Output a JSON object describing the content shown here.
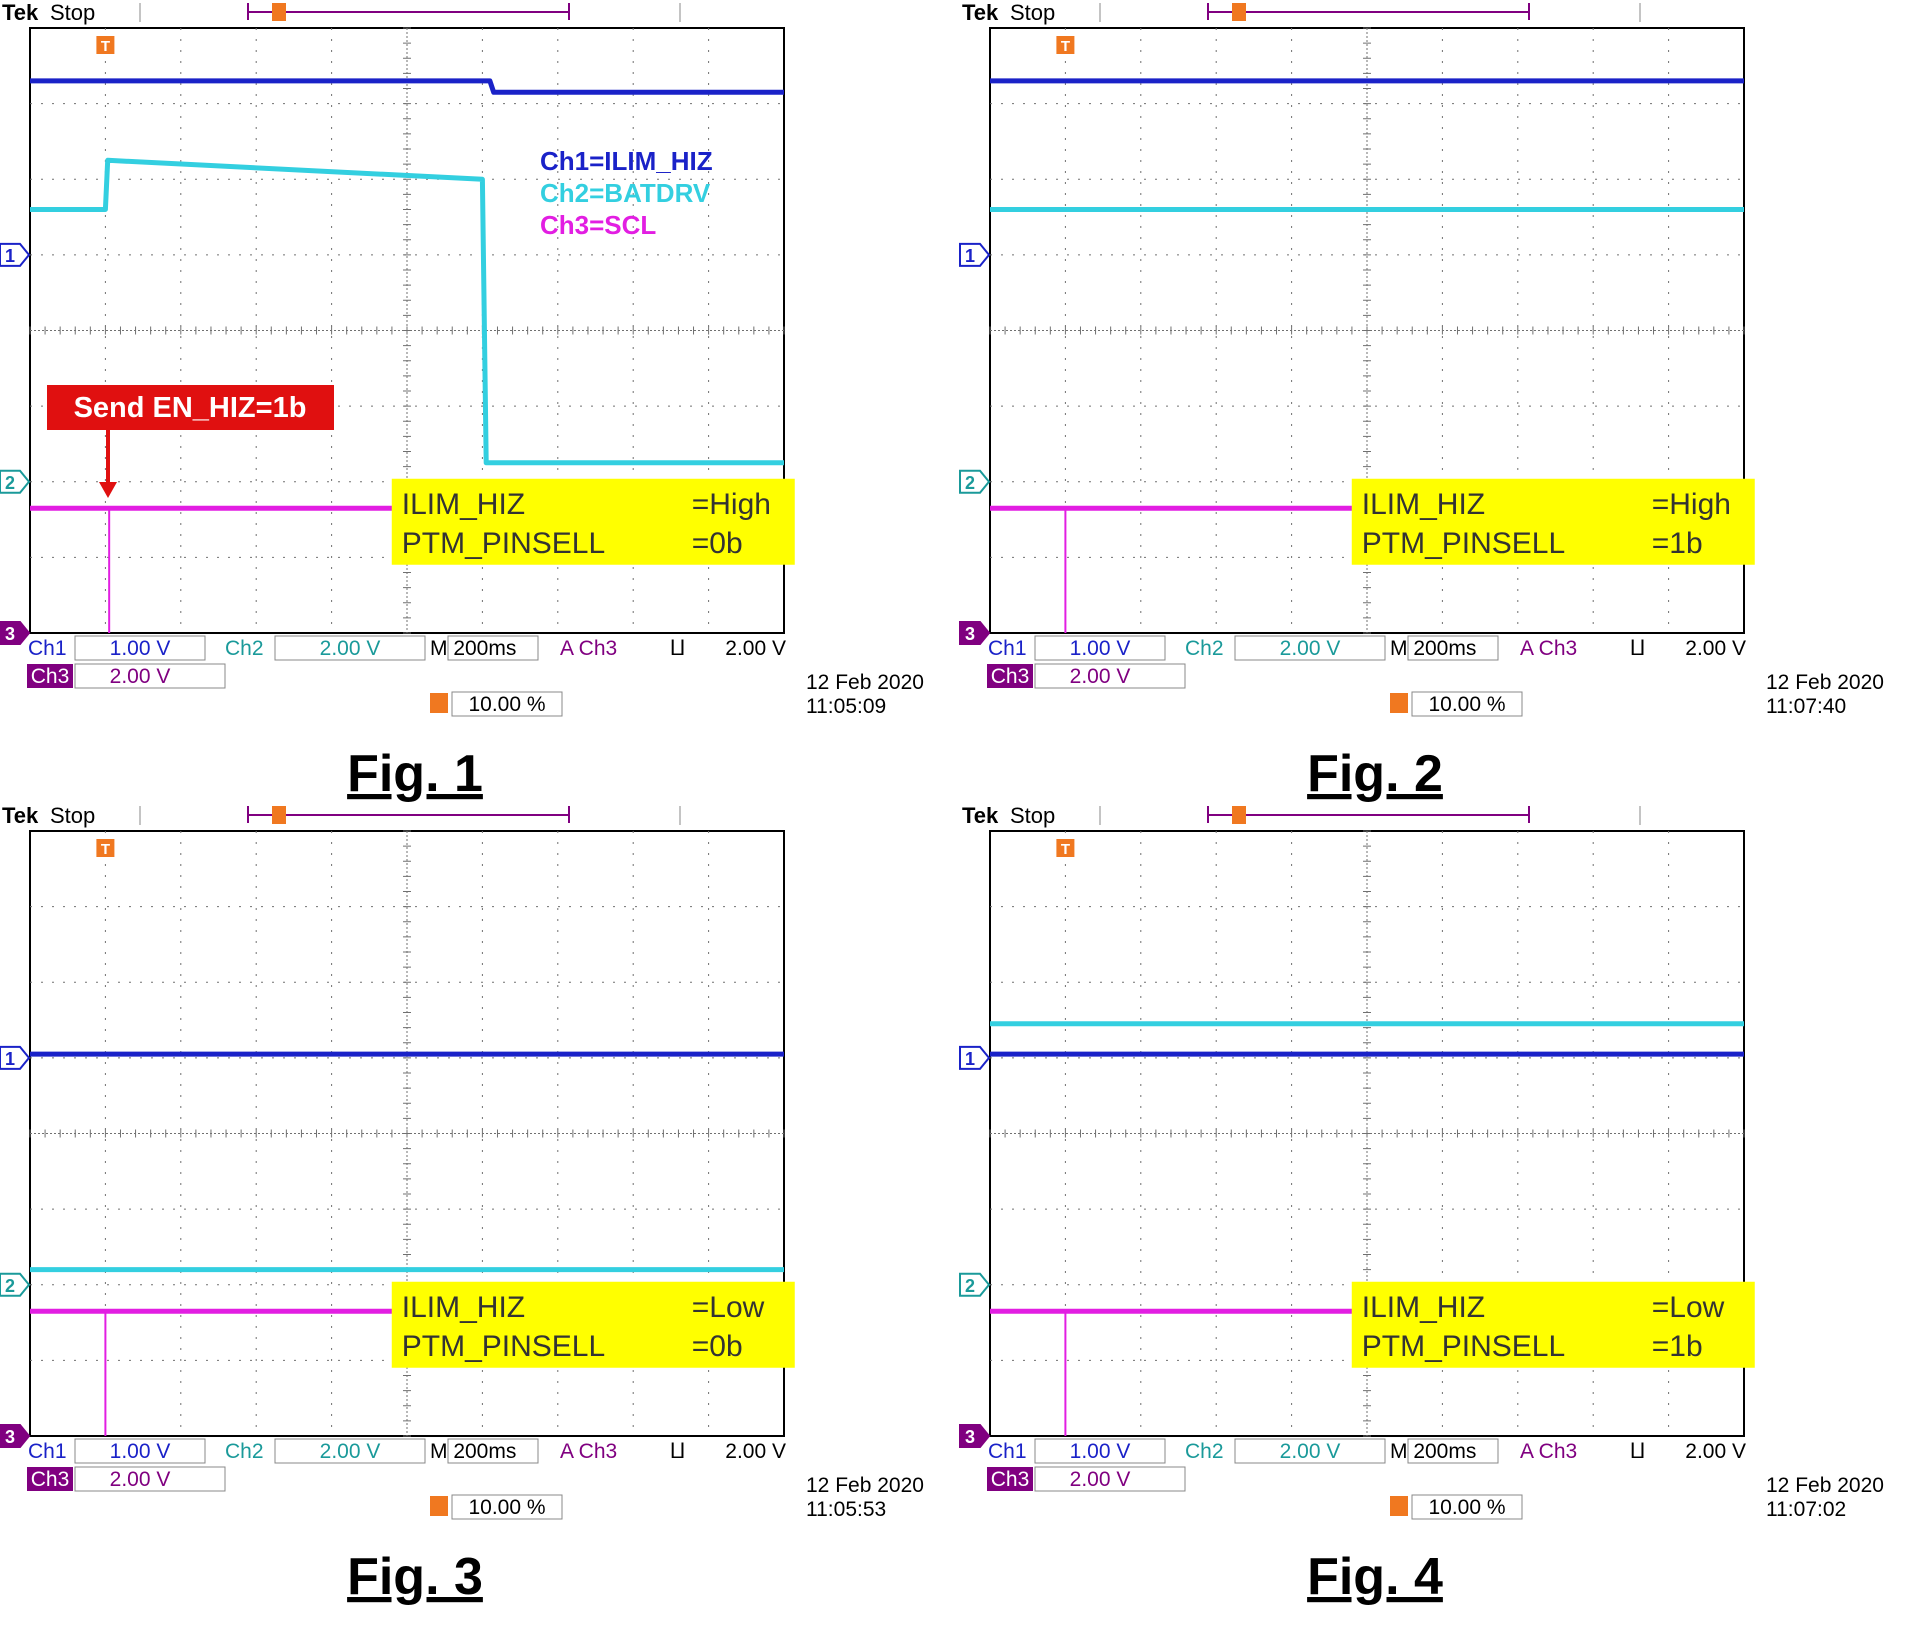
{
  "figure_label_prefix": "Fig.",
  "legend": [
    {
      "text": "Ch1=ILIM_HIZ",
      "color": "#1a22c8"
    },
    {
      "text": "Ch2=BATDRV",
      "color": "#33cfe0"
    },
    {
      "text": "Ch3=SCL",
      "color": "#e21ee2"
    }
  ],
  "annotation": {
    "text": "Send EN_HIZ=1b",
    "bg": "#e01010"
  },
  "colors": {
    "ch1": "#1a22c8",
    "ch2": "#33cfe0",
    "ch3": "#e21ee2",
    "trigger": "#f07820",
    "info_box": "#ffff00",
    "grid": "#707070"
  },
  "chart_data": [
    {
      "type": "line",
      "figure": "Fig. 1",
      "brand": "Tek",
      "state": "Stop",
      "info": [
        {
          "name": "ILIM_HIZ",
          "value": "=High"
        },
        {
          "name": "PTM_PINSELL",
          "value": "=0b"
        }
      ],
      "readout": {
        "ch1_label": "Ch1",
        "ch1_scale": "1.00 V",
        "ch2_label": "Ch2",
        "ch2_scale": "2.00 V",
        "ch3_label": "Ch3",
        "ch3_scale": "2.00 V",
        "timebase": "M 200ms",
        "trigger_source": "A  Ch3",
        "trigger_slope": "⨿",
        "trigger_level": "2.00 V",
        "trigger_position": "10.00 %",
        "date": "12 Feb  2020",
        "time": "11:05:09"
      },
      "x_divisions": 10,
      "y_divisions": 8,
      "series": [
        {
          "name": "Ch1=ILIM_HIZ",
          "channel": 1,
          "points": [
            [
              0,
              7.3
            ],
            [
              6.1,
              7.3
            ],
            [
              6.15,
              7.15
            ],
            [
              10,
              7.15
            ]
          ]
        },
        {
          "name": "Ch2=BATDRV",
          "channel": 2,
          "points": [
            [
              0,
              5.6
            ],
            [
              1.0,
              5.6
            ],
            [
              1.03,
              6.25
            ],
            [
              6.0,
              6.0
            ],
            [
              6.05,
              2.25
            ],
            [
              10,
              2.25
            ]
          ]
        },
        {
          "name": "Ch3=SCL",
          "channel": 3,
          "points": [
            [
              0,
              1.65
            ],
            [
              10,
              1.65
            ]
          ],
          "glitch_at": 1.05
        }
      ],
      "markers": {
        "ch1": 5.0,
        "ch2": 2.0,
        "ch3": 0.0,
        "ch3_trigger": true
      }
    },
    {
      "type": "line",
      "figure": "Fig. 2",
      "brand": "Tek",
      "state": "Stop",
      "info": [
        {
          "name": "ILIM_HIZ",
          "value": "=High"
        },
        {
          "name": "PTM_PINSELL",
          "value": "=1b"
        }
      ],
      "readout": {
        "ch1_label": "Ch1",
        "ch1_scale": "1.00 V",
        "ch2_label": "Ch2",
        "ch2_scale": "2.00 V",
        "ch3_label": "Ch3",
        "ch3_scale": "2.00 V",
        "timebase": "M 200ms",
        "trigger_source": "A  Ch3",
        "trigger_slope": "⨿",
        "trigger_level": "2.00 V",
        "trigger_position": "10.00 %",
        "date": "12 Feb  2020",
        "time": "11:07:40"
      },
      "x_divisions": 10,
      "y_divisions": 8,
      "series": [
        {
          "name": "Ch1=ILIM_HIZ",
          "channel": 1,
          "points": [
            [
              0,
              7.3
            ],
            [
              10,
              7.3
            ]
          ]
        },
        {
          "name": "Ch2=BATDRV",
          "channel": 2,
          "points": [
            [
              0,
              5.6
            ],
            [
              10,
              5.6
            ]
          ]
        },
        {
          "name": "Ch3=SCL",
          "channel": 3,
          "points": [
            [
              0,
              1.65
            ],
            [
              10,
              1.65
            ]
          ],
          "glitch_at": 1.0
        }
      ],
      "markers": {
        "ch1": 5.0,
        "ch2": 2.0,
        "ch3": 0.0,
        "ch3_trigger": false
      }
    },
    {
      "type": "line",
      "figure": "Fig. 3",
      "brand": "Tek",
      "state": "Stop",
      "info": [
        {
          "name": "ILIM_HIZ",
          "value": "=Low"
        },
        {
          "name": "PTM_PINSELL",
          "value": "=0b"
        }
      ],
      "readout": {
        "ch1_label": "Ch1",
        "ch1_scale": "1.00 V",
        "ch2_label": "Ch2",
        "ch2_scale": "2.00 V",
        "ch3_label": "Ch3",
        "ch3_scale": "2.00 V",
        "timebase": "M 200ms",
        "trigger_source": "A  Ch3",
        "trigger_slope": "⨿",
        "trigger_level": "2.00 V",
        "trigger_position": "10.00 %",
        "date": "12 Feb  2020",
        "time": "11:05:53"
      },
      "x_divisions": 10,
      "y_divisions": 8,
      "series": [
        {
          "name": "Ch1=ILIM_HIZ",
          "channel": 1,
          "points": [
            [
              0,
              5.05
            ],
            [
              10,
              5.05
            ]
          ]
        },
        {
          "name": "Ch2=BATDRV",
          "channel": 2,
          "points": [
            [
              0,
              2.2
            ],
            [
              10,
              2.2
            ]
          ]
        },
        {
          "name": "Ch3=SCL",
          "channel": 3,
          "points": [
            [
              0,
              1.65
            ],
            [
              10,
              1.65
            ]
          ],
          "glitch_at": 1.0
        }
      ],
      "markers": {
        "ch1": 5.0,
        "ch2": 2.0,
        "ch3": 0.0,
        "ch3_trigger": true
      }
    },
    {
      "type": "line",
      "figure": "Fig. 4",
      "brand": "Tek",
      "state": "Stop",
      "info": [
        {
          "name": "ILIM_HIZ",
          "value": "=Low"
        },
        {
          "name": "PTM_PINSELL",
          "value": "=1b"
        }
      ],
      "readout": {
        "ch1_label": "Ch1",
        "ch1_scale": "1.00 V",
        "ch2_label": "Ch2",
        "ch2_scale": "2.00 V",
        "ch3_label": "Ch3",
        "ch3_scale": "2.00 V",
        "timebase": "M 200ms",
        "trigger_source": "A  Ch3",
        "trigger_slope": "⨿",
        "trigger_level": "2.00 V",
        "trigger_position": "10.00 %",
        "date": "12 Feb  2020",
        "time": "11:07:02"
      },
      "x_divisions": 10,
      "y_divisions": 8,
      "series": [
        {
          "name": "Ch1=ILIM_HIZ",
          "channel": 1,
          "points": [
            [
              0,
              5.05
            ],
            [
              10,
              5.05
            ]
          ]
        },
        {
          "name": "Ch2=BATDRV",
          "channel": 2,
          "points": [
            [
              0,
              5.45
            ],
            [
              10,
              5.45
            ]
          ]
        },
        {
          "name": "Ch3=SCL",
          "channel": 3,
          "points": [
            [
              0,
              1.65
            ],
            [
              10,
              1.65
            ]
          ],
          "glitch_at": 1.0
        }
      ],
      "markers": {
        "ch1": 5.0,
        "ch2": 2.0,
        "ch3": 0.0,
        "ch3_trigger": false
      }
    }
  ]
}
